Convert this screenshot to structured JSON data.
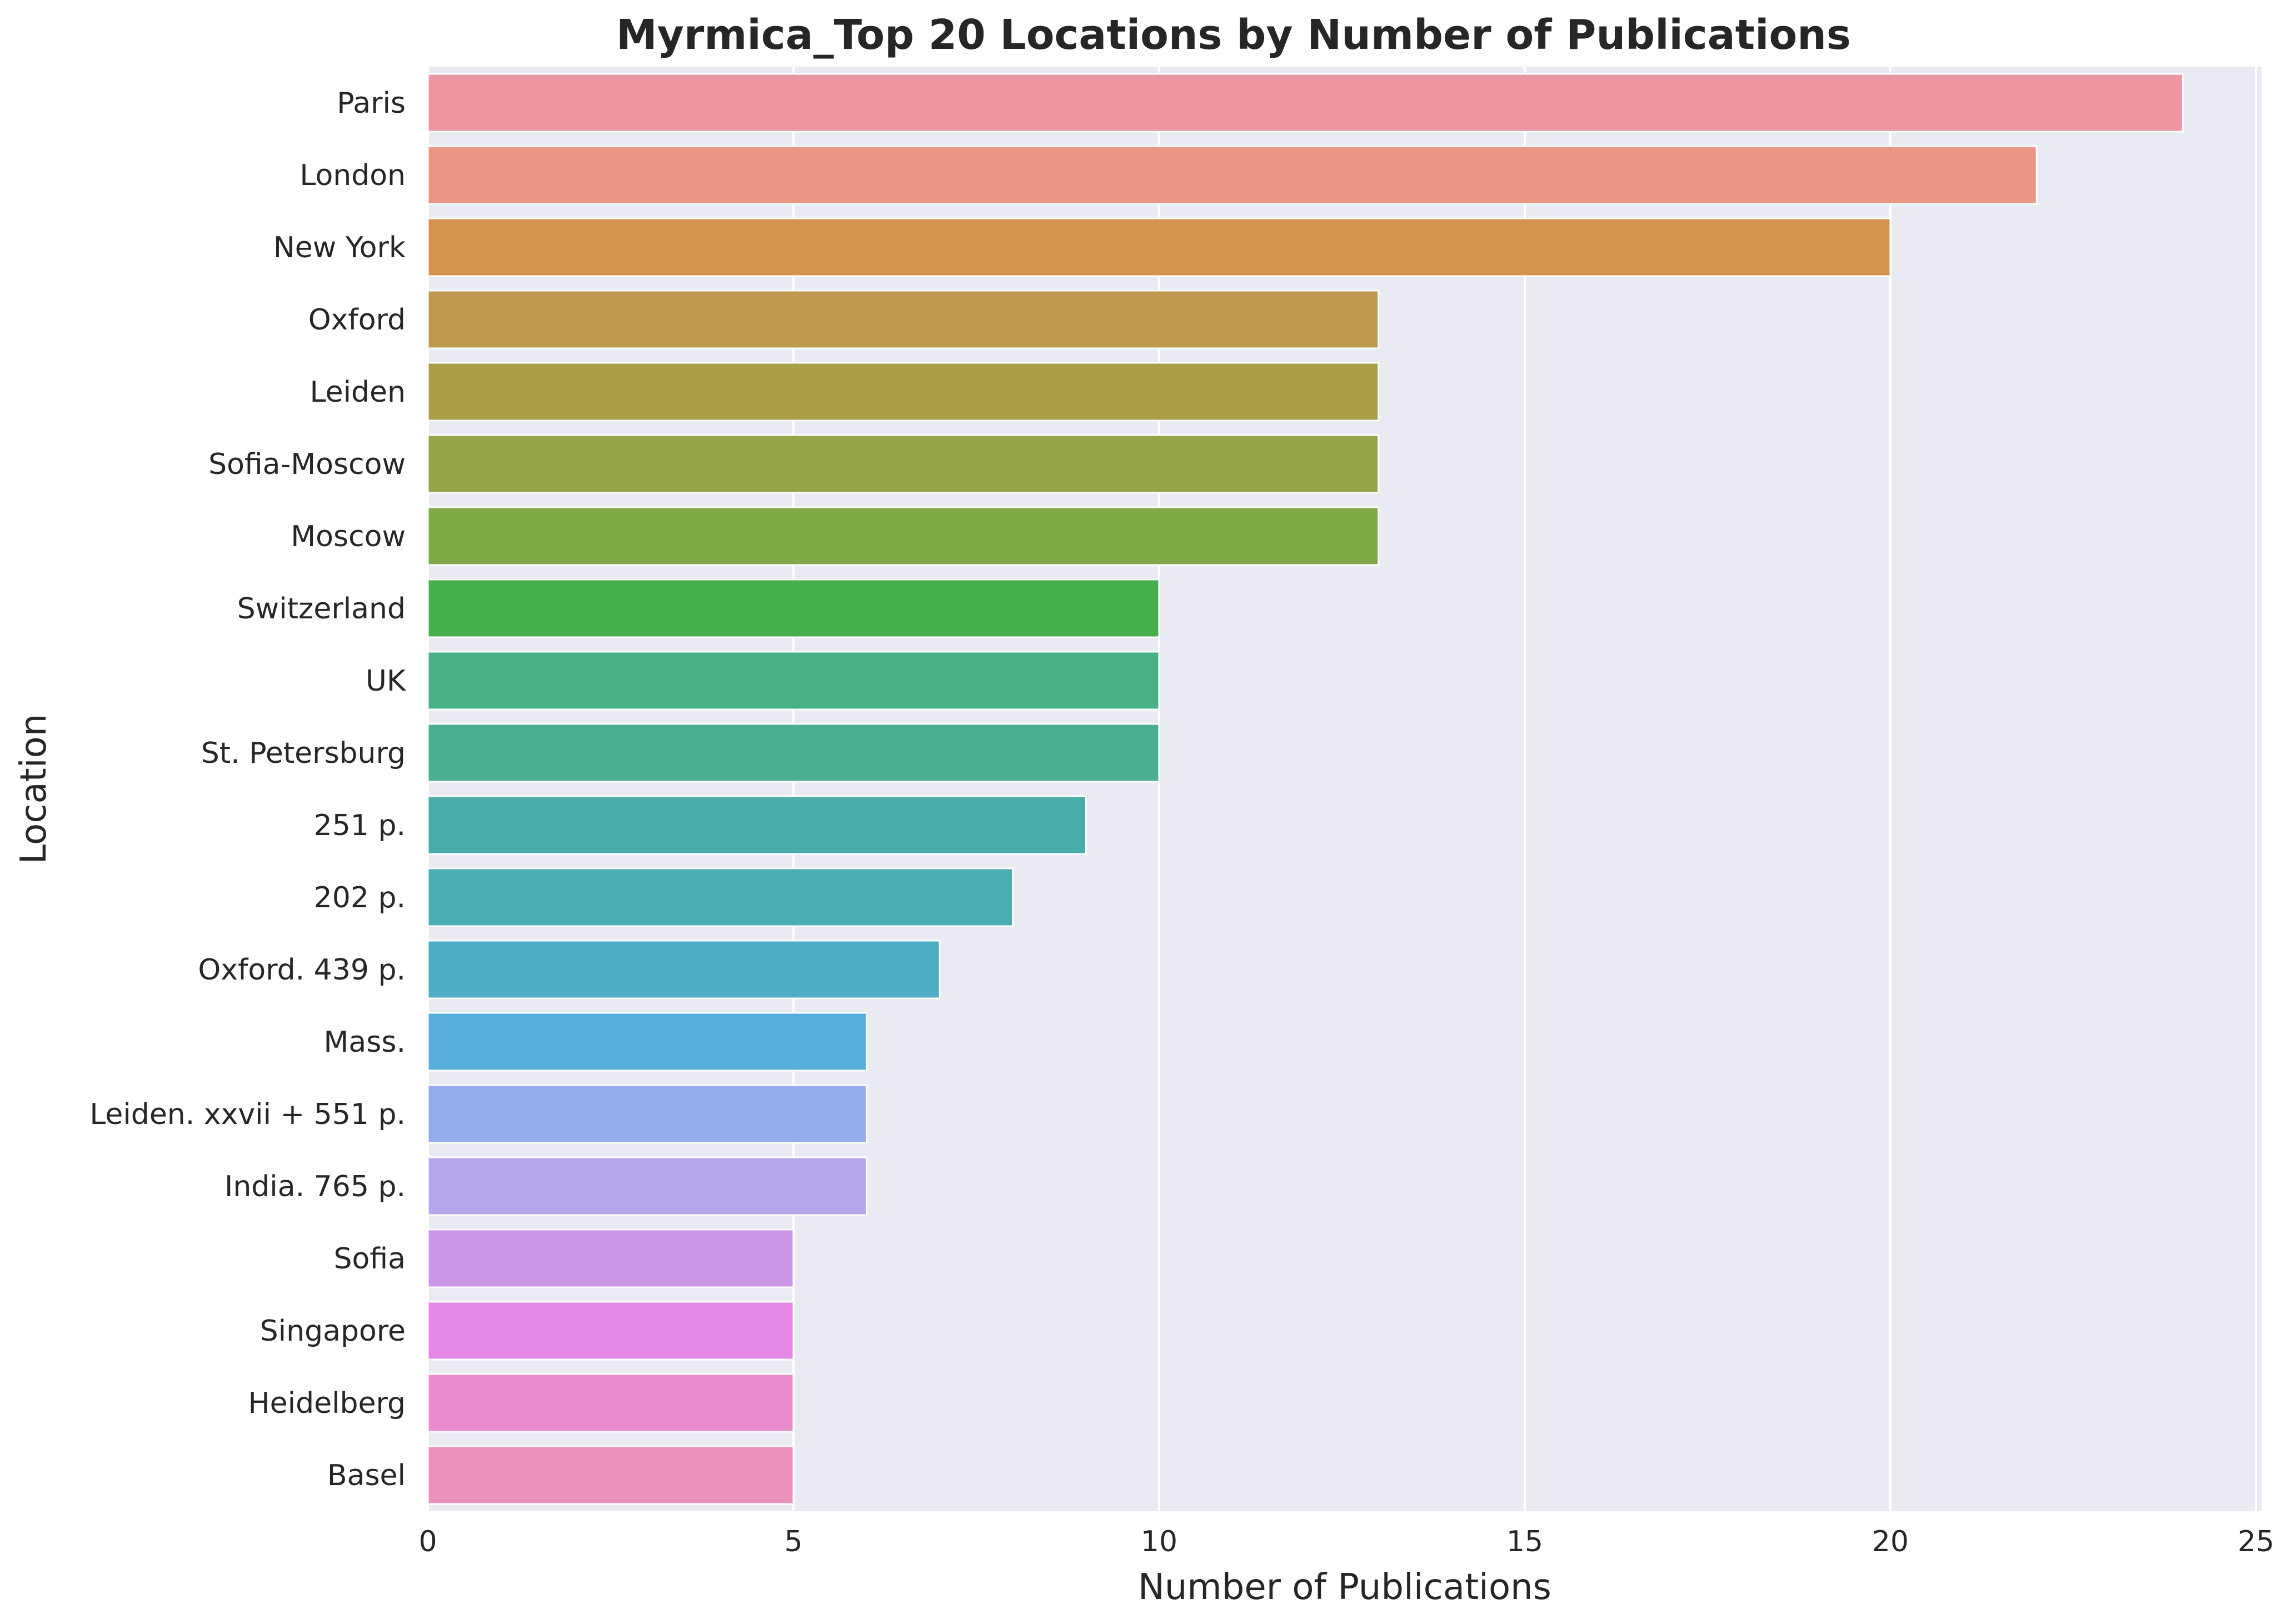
{
  "chart_data": {
    "type": "bar",
    "orientation": "horizontal",
    "title": "Myrmica_Top 20 Locations by Number of Publications",
    "xlabel": "Number of Publications",
    "ylabel": "Location",
    "xlim": [
      0,
      25
    ],
    "xticks": [
      0,
      5,
      10,
      15,
      20,
      25
    ],
    "grid": true,
    "categories": [
      "Paris",
      "London",
      "New York",
      "Oxford",
      "Leiden",
      "Sofia-Moscow",
      "Moscow",
      "Switzerland",
      "UK",
      "St. Petersburg",
      "251 p.",
      "202 p.",
      "Oxford.  439 p.",
      "Mass.",
      "Leiden.  xxvii + 551 p.",
      "India. 765 p.",
      "Sofia",
      "Singapore",
      "Heidelberg",
      "Basel"
    ],
    "values": [
      24,
      22,
      20,
      13,
      13,
      13,
      13,
      10,
      10,
      10,
      9,
      8,
      7,
      6,
      6,
      6,
      5,
      5,
      5,
      5
    ],
    "colors": [
      "#ec96a4",
      "#e99785",
      "#d6924f",
      "#bd9a4f",
      "#aa9e47",
      "#98a44a",
      "#80aa47",
      "#45b04e",
      "#4ab186",
      "#4aaf91",
      "#4aaca8",
      "#4badb4",
      "#4fadc5",
      "#58aedd",
      "#95acea",
      "#b6a6ec",
      "#cd95e8",
      "#e587e6",
      "#e98ccd",
      "#ea91ba"
    ],
    "background_color": "#eaeaf2",
    "grid_color": "#ffffff"
  }
}
